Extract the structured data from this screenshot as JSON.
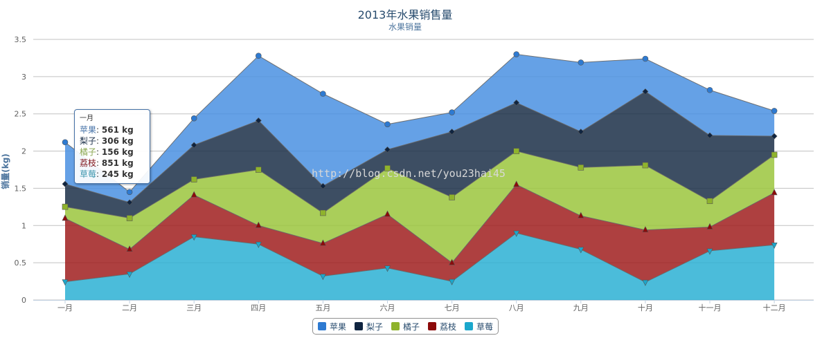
{
  "chart_data": {
    "type": "area",
    "stacked": true,
    "title": "2013年水果销售量",
    "subtitle": "水果销量",
    "ylabel": "销量(kg)",
    "ylim": [
      0,
      3.5
    ],
    "yticks": [
      "0",
      "0.5",
      "1",
      "1.5",
      "2",
      "2.5",
      "3",
      "3.5"
    ],
    "ytick_values": [
      0,
      0.5,
      1,
      1.5,
      2,
      2.5,
      3,
      3.5
    ],
    "categories": [
      "一月",
      "二月",
      "三月",
      "四月",
      "五月",
      "六月",
      "七月",
      "八月",
      "九月",
      "十月",
      "十一月",
      "十二月"
    ],
    "grid": true,
    "legend_position": "bottom-center",
    "series": [
      {
        "name": "苹果",
        "color": "#4a90e2",
        "marker": "circle",
        "values": [
          0.561,
          0.14,
          0.36,
          0.87,
          1.24,
          0.34,
          0.26,
          0.65,
          0.93,
          0.44,
          0.61,
          0.34
        ]
      },
      {
        "name": "梨子",
        "color": "#1b2f48",
        "marker": "diamond",
        "values": [
          0.306,
          0.21,
          0.46,
          0.66,
          0.36,
          0.25,
          0.88,
          0.65,
          0.48,
          0.99,
          0.88,
          0.25
        ]
      },
      {
        "name": "橘子",
        "color": "#9bc53d",
        "marker": "square",
        "values": [
          0.156,
          0.42,
          0.21,
          0.75,
          0.41,
          0.62,
          0.88,
          0.45,
          0.65,
          0.87,
          0.35,
          0.51
        ]
      },
      {
        "name": "荔枝",
        "color": "#a01e1e",
        "marker": "triangle",
        "values": [
          0.851,
          0.33,
          0.56,
          0.25,
          0.44,
          0.72,
          0.25,
          0.65,
          0.45,
          0.7,
          0.32,
          0.7
        ]
      },
      {
        "name": "草莓",
        "color": "#2bb0d3",
        "marker": "triangle-down",
        "values": [
          0.245,
          0.35,
          0.85,
          0.75,
          0.32,
          0.43,
          0.25,
          0.9,
          0.68,
          0.24,
          0.66,
          0.74
        ]
      }
    ]
  },
  "tooltip": {
    "header": "一月",
    "rows": [
      {
        "name": "苹果",
        "value": "561 kg",
        "color": "#4572a7"
      },
      {
        "name": "梨子",
        "value": "306 kg",
        "color": "#1b2f48"
      },
      {
        "name": "橘子",
        "value": "156 kg",
        "color": "#89a54e"
      },
      {
        "name": "荔枝",
        "value": "851 kg",
        "color": "#80141a"
      },
      {
        "name": "草莓",
        "value": "245 kg",
        "color": "#3d96ae"
      }
    ]
  },
  "watermark": "http://blog.csdn.net/you23hai45"
}
